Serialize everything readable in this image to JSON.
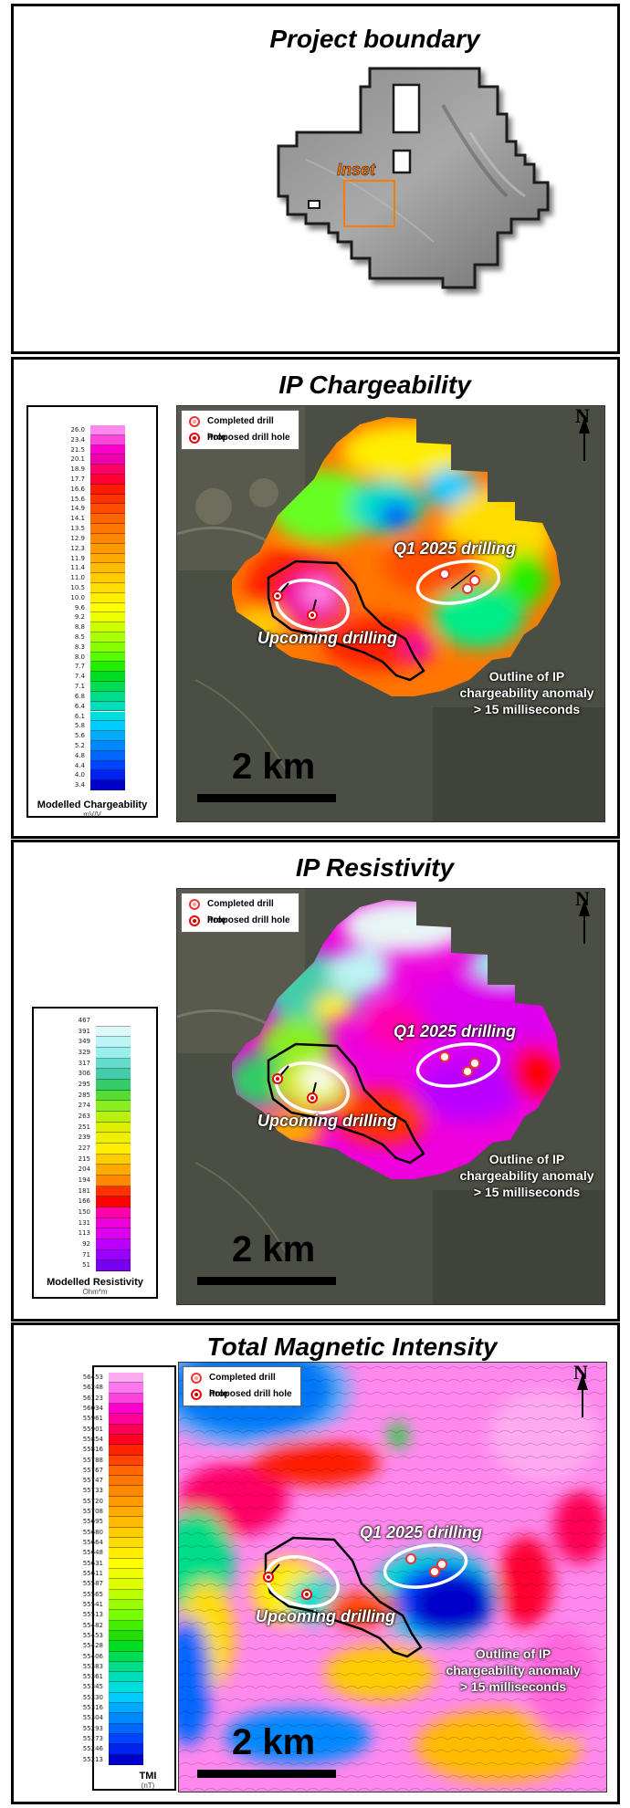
{
  "panels": {
    "boundary": {
      "title": "Project boundary",
      "inset_label": "Inset"
    },
    "chargeability": {
      "title": "IP Chargeability",
      "legend_title": "Modelled Chargeability",
      "legend_unit": "mV/V",
      "legend_values": [
        "26.0",
        "23.4",
        "21.5",
        "20.1",
        "18.9",
        "17.7",
        "16.6",
        "15.6",
        "14.9",
        "14.1",
        "13.5",
        "12.9",
        "12.3",
        "11.9",
        "11.4",
        "11.0",
        "10.5",
        "10.0",
        "9.6",
        "9.2",
        "8.8",
        "8.5",
        "8.3",
        "8.0",
        "7.7",
        "7.4",
        "7.1",
        "6.8",
        "6.4",
        "6.1",
        "5.8",
        "5.6",
        "5.2",
        "4.8",
        "4.4",
        "4.0",
        "3.4"
      ],
      "legend_colors": [
        "#ff88ee",
        "#ff44dd",
        "#ff00cc",
        "#ee00aa",
        "#ff0066",
        "#ff0033",
        "#ff1a00",
        "#ff3300",
        "#ff4d00",
        "#ff6600",
        "#ff7700",
        "#ff8800",
        "#ff9900",
        "#ffaa00",
        "#ffbb00",
        "#ffcc00",
        "#ffdd00",
        "#ffee00",
        "#ffff00",
        "#eeff00",
        "#ccff00",
        "#aaff00",
        "#88ff00",
        "#55ff00",
        "#22ee00",
        "#00dd22",
        "#00dd55",
        "#00dd88",
        "#00ddbb",
        "#00dddd",
        "#00ccff",
        "#00aaff",
        "#0088ff",
        "#0066ff",
        "#0044ff",
        "#0022ee",
        "#0000cc"
      ],
      "key": {
        "completed": "Completed drill hole",
        "proposed": "Proposed drill hole"
      },
      "labels": {
        "q1": "Q1 2025 drilling",
        "upcoming": "Upcoming drilling",
        "outline_l1": "Outline of IP",
        "outline_l2": "chargeability anomaly",
        "outline_l3": "> 15 milliseconds",
        "scale": "2 km",
        "north": "N"
      }
    },
    "resistivity": {
      "title": "IP Resistivity",
      "legend_title": "Modelled Resistivity",
      "legend_unit": "Ohm*m",
      "legend_values": [
        "467",
        "391",
        "349",
        "329",
        "317",
        "306",
        "295",
        "285",
        "274",
        "263",
        "251",
        "239",
        "227",
        "215",
        "204",
        "194",
        "181",
        "166",
        "150",
        "131",
        "113",
        "92",
        "71",
        "51"
      ],
      "legend_colors": [
        "#ffffff",
        "#ddfafa",
        "#bbf4f4",
        "#99eeee",
        "#66ddcc",
        "#44ccaa",
        "#33cc66",
        "#55dd33",
        "#88ee22",
        "#bbee11",
        "#ddee00",
        "#eeee00",
        "#ffee00",
        "#ffcc00",
        "#ffaa00",
        "#ff8800",
        "#ff3300",
        "#ff0000",
        "#ff00aa",
        "#ee00dd",
        "#dd00ee",
        "#bb00ff",
        "#9900ff",
        "#7700ee"
      ],
      "key": {
        "completed": "Completed drill hole",
        "proposed": "Proposed drill hole"
      },
      "labels": {
        "q1": "Q1 2025 drilling",
        "upcoming": "Upcoming drilling",
        "outline_l1": "Outline of IP",
        "outline_l2": "chargeability anomaly",
        "outline_l3": "> 15 milliseconds",
        "scale": "2 km",
        "north": "N"
      }
    },
    "tmi": {
      "title": "Total Magnetic Intensity",
      "legend_title": "TMI",
      "legend_unit": "(nT)",
      "legend_values": [
        "56453",
        "56248",
        "56123",
        "56034",
        "55961",
        "55901",
        "55854",
        "55816",
        "55788",
        "55767",
        "55747",
        "55733",
        "55720",
        "55708",
        "55695",
        "55680",
        "55664",
        "55648",
        "55631",
        "55611",
        "55587",
        "55565",
        "55541",
        "55513",
        "55482",
        "55453",
        "55428",
        "55406",
        "55383",
        "55361",
        "55345",
        "55330",
        "55316",
        "55304",
        "55293",
        "55273",
        "55246",
        "55213"
      ],
      "legend_colors": [
        "#ffaaf0",
        "#ff77ee",
        "#ff44dd",
        "#ff00cc",
        "#ff0099",
        "#ff0055",
        "#ff0022",
        "#ff2200",
        "#ff4400",
        "#ff6600",
        "#ff7700",
        "#ff8800",
        "#ff9900",
        "#ffaa00",
        "#ffbb00",
        "#ffcc00",
        "#ffdd00",
        "#ffee00",
        "#ffff00",
        "#eeff00",
        "#ddff00",
        "#bbff00",
        "#99ff00",
        "#77ff00",
        "#44ee00",
        "#22dd00",
        "#00dd22",
        "#00dd55",
        "#00dd88",
        "#00ddbb",
        "#00dddd",
        "#00ccff",
        "#00aaff",
        "#0088ff",
        "#0066ff",
        "#0044ff",
        "#0022ee",
        "#0000cc"
      ],
      "key": {
        "completed": "Completed drill hole",
        "proposed": "Proposed drill hole"
      },
      "labels": {
        "q1": "Q1 2025 drilling",
        "upcoming": "Upcoming drilling",
        "outline_l1": "Outline of IP",
        "outline_l2": "chargeability anomaly",
        "outline_l3": "> 15 milliseconds",
        "scale": "2 km",
        "north": "N"
      }
    }
  }
}
